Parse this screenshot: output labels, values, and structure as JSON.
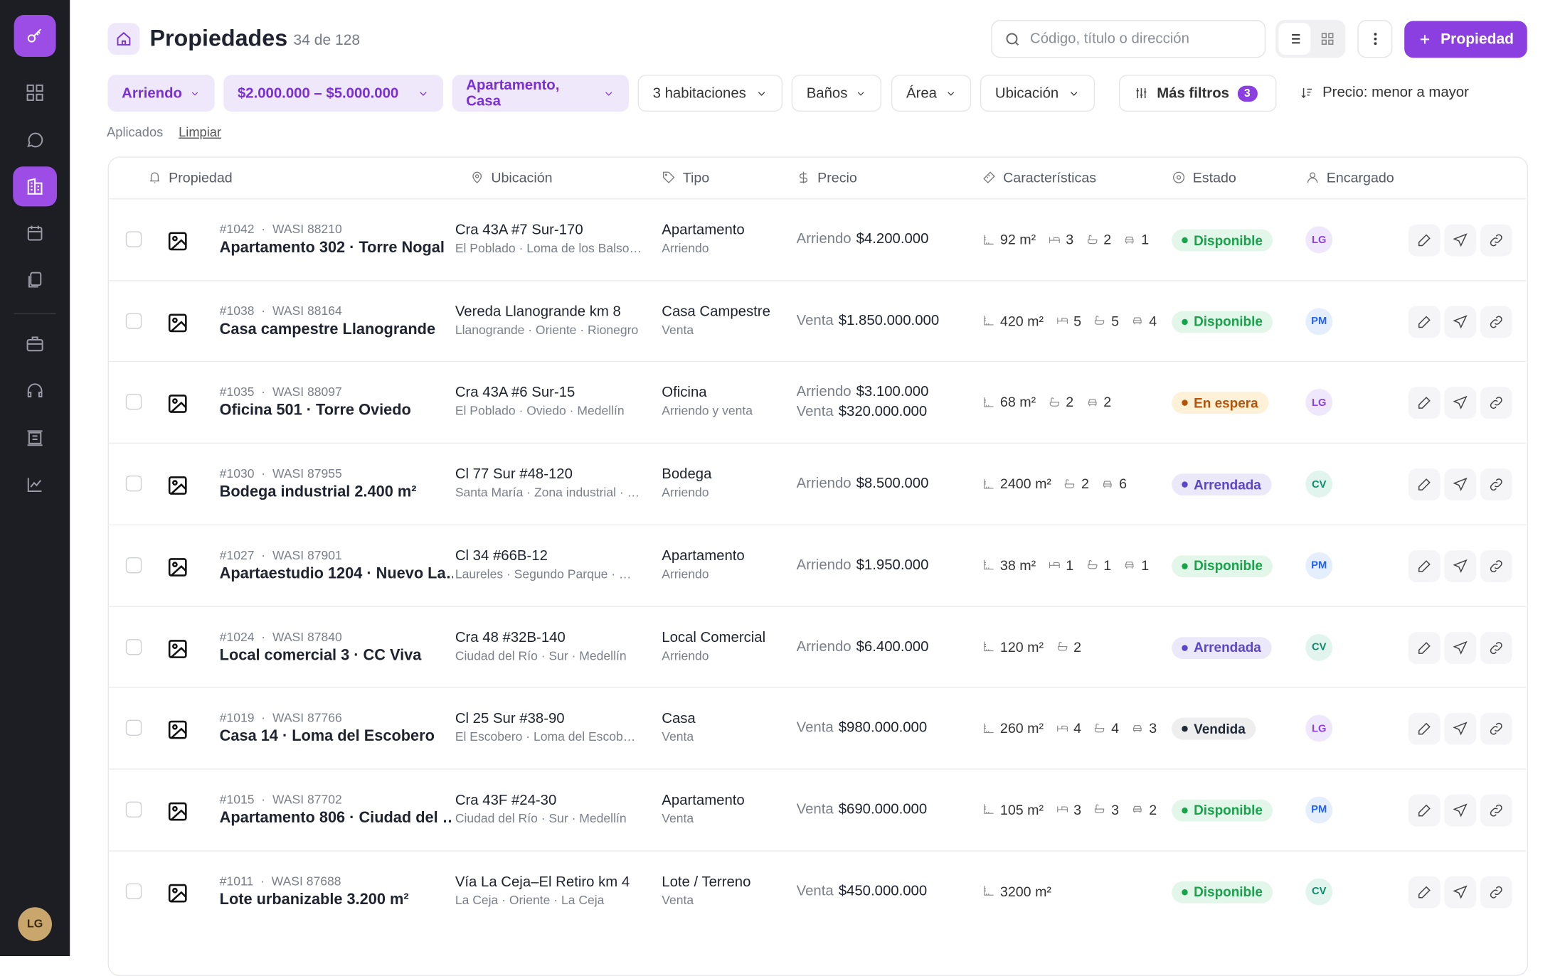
{
  "sidebar": {
    "user_initials": "LG"
  },
  "header": {
    "title": "Propiedades",
    "count": "34 de 128",
    "search_placeholder": "Código, título o dirección",
    "add_button": "Propiedad"
  },
  "filters": {
    "chips": [
      {
        "label": "Arriendo",
        "active": true
      },
      {
        "label": "$2.000.000 – $5.000.000",
        "active": true
      },
      {
        "label": "Apartamento, Casa",
        "active": true
      },
      {
        "label": "3 habitaciones",
        "active": false
      },
      {
        "label": "Baños",
        "active": false
      },
      {
        "label": "Área",
        "active": false
      },
      {
        "label": "Ubicación",
        "active": false
      }
    ],
    "more_filters": "Más filtros",
    "more_filters_count": "3",
    "sort": "Precio: menor a mayor",
    "applied": "Aplicados",
    "clear": "Limpiar"
  },
  "table": {
    "columns": [
      "Propiedad",
      "Ubicación",
      "Tipo",
      "Precio",
      "Características",
      "Estado",
      "Encargado"
    ],
    "rows": [
      {
        "code": "#1042",
        "wasi": "WASI 88210",
        "title": "Apartamento 302 · Torre Nogal",
        "address": "Cra 43A #7 Sur-170",
        "zone": "El Poblado · Loma de los Balso…",
        "type": "Apartamento",
        "operation": "Arriendo",
        "prices": [
          {
            "op": "Arriendo",
            "amount": "$4.200.000"
          }
        ],
        "features": {
          "area": "92 m²",
          "rooms": "3",
          "baths": "2",
          "parking": "1"
        },
        "status": "Disponible",
        "status_color": "#16a34a",
        "status_bg": "#e3f6ea",
        "agent": "LG",
        "agent_color": "#8b3fe0",
        "agent_bg": "#efe7fb"
      },
      {
        "code": "#1038",
        "wasi": "WASI 88164",
        "title": "Casa campestre Llanogrande",
        "address": "Vereda Llanogrande km 8",
        "zone": "Llanogrande · Oriente · Rionegro",
        "type": "Casa Campestre",
        "operation": "Venta",
        "prices": [
          {
            "op": "Venta",
            "amount": "$1.850.000.000"
          }
        ],
        "features": {
          "area": "420 m²",
          "rooms": "5",
          "baths": "5",
          "parking": "4"
        },
        "status": "Disponible",
        "status_color": "#16a34a",
        "status_bg": "#e3f6ea",
        "agent": "PM",
        "agent_color": "#2563eb",
        "agent_bg": "#e4eefc"
      },
      {
        "code": "#1035",
        "wasi": "WASI 88097",
        "title": "Oficina 501 · Torre Oviedo",
        "address": "Cra 43A #6 Sur-15",
        "zone": "El Poblado · Oviedo · Medellín",
        "type": "Oficina",
        "operation": "Arriendo y venta",
        "prices": [
          {
            "op": "Arriendo",
            "amount": "$3.100.000"
          },
          {
            "op": "Venta",
            "amount": "$320.000.000"
          }
        ],
        "features": {
          "area": "68 m²",
          "baths": "2",
          "parking": "2"
        },
        "status": "En espera",
        "status_color": "#b45309",
        "status_bg": "#fdf1d8",
        "agent": "LG",
        "agent_color": "#8b3fe0",
        "agent_bg": "#efe7fb"
      },
      {
        "code": "#1030",
        "wasi": "WASI 87955",
        "title": "Bodega industrial 2.400 m²",
        "address": "Cl 77 Sur #48-120",
        "zone": "Santa María · Zona industrial · …",
        "type": "Bodega",
        "operation": "Arriendo",
        "prices": [
          {
            "op": "Arriendo",
            "amount": "$8.500.000"
          }
        ],
        "features": {
          "area": "2400 m²",
          "baths": "2",
          "parking": "6"
        },
        "status": "Arrendada",
        "status_color": "#5b45c9",
        "status_bg": "#ebe8fa",
        "agent": "CV",
        "agent_color": "#0f8a6a",
        "agent_bg": "#e1f5ee"
      },
      {
        "code": "#1027",
        "wasi": "WASI 87901",
        "title": "Apartaestudio 1204 · Nuevo La…",
        "address": "Cl 34 #66B-12",
        "zone": "Laureles · Segundo Parque · …",
        "type": "Apartamento",
        "operation": "Arriendo",
        "prices": [
          {
            "op": "Arriendo",
            "amount": "$1.950.000"
          }
        ],
        "features": {
          "area": "38 m²",
          "rooms": "1",
          "baths": "1",
          "parking": "1"
        },
        "status": "Disponible",
        "status_color": "#16a34a",
        "status_bg": "#e3f6ea",
        "agent": "PM",
        "agent_color": "#2563eb",
        "agent_bg": "#e4eefc"
      },
      {
        "code": "#1024",
        "wasi": "WASI 87840",
        "title": "Local comercial 3 · CC Viva",
        "address": "Cra 48 #32B-140",
        "zone": "Ciudad del Río · Sur · Medellín",
        "type": "Local Comercial",
        "operation": "Arriendo",
        "prices": [
          {
            "op": "Arriendo",
            "amount": "$6.400.000"
          }
        ],
        "features": {
          "area": "120 m²",
          "baths": "2"
        },
        "status": "Arrendada",
        "status_color": "#5b45c9",
        "status_bg": "#ebe8fa",
        "agent": "CV",
        "agent_color": "#0f8a6a",
        "agent_bg": "#e1f5ee"
      },
      {
        "code": "#1019",
        "wasi": "WASI 87766",
        "title": "Casa 14 · Loma del Escobero",
        "address": "Cl 25 Sur #38-90",
        "zone": "El Escobero · Loma del Escob…",
        "type": "Casa",
        "operation": "Venta",
        "prices": [
          {
            "op": "Venta",
            "amount": "$980.000.000"
          }
        ],
        "features": {
          "area": "260 m²",
          "rooms": "4",
          "baths": "4",
          "parking": "3"
        },
        "status": "Vendida",
        "status_color": "#1f2937",
        "status_bg": "#eeeeef",
        "agent": "LG",
        "agent_color": "#8b3fe0",
        "agent_bg": "#efe7fb"
      },
      {
        "code": "#1015",
        "wasi": "WASI 87702",
        "title": "Apartamento 806 · Ciudad del …",
        "address": "Cra 43F #24-30",
        "zone": "Ciudad del Río · Sur · Medellín",
        "type": "Apartamento",
        "operation": "Venta",
        "prices": [
          {
            "op": "Venta",
            "amount": "$690.000.000"
          }
        ],
        "features": {
          "area": "105 m²",
          "rooms": "3",
          "baths": "3",
          "parking": "2"
        },
        "status": "Disponible",
        "status_color": "#16a34a",
        "status_bg": "#e3f6ea",
        "agent": "PM",
        "agent_color": "#2563eb",
        "agent_bg": "#e4eefc"
      },
      {
        "code": "#1011",
        "wasi": "WASI 87688",
        "title": "Lote urbanizable 3.200 m²",
        "address": "Vía La Ceja–El Retiro km 4",
        "zone": "La Ceja · Oriente · La Ceja",
        "type": "Lote / Terreno",
        "operation": "Venta",
        "prices": [
          {
            "op": "Venta",
            "amount": "$450.000.000"
          }
        ],
        "features": {
          "area": "3200 m²"
        },
        "status": "Disponible",
        "status_color": "#16a34a",
        "status_bg": "#e3f6ea",
        "agent": "CV",
        "agent_color": "#0f8a6a",
        "agent_bg": "#e1f5ee"
      }
    ]
  }
}
